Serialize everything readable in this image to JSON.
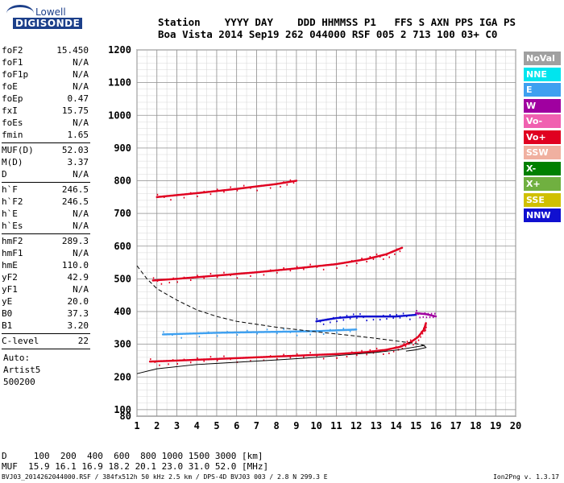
{
  "logo": {
    "line1": "Lowell",
    "line2": "DIGISONDE"
  },
  "header": {
    "line1": "Station    YYYY DAY    DDD HHMMSS P1   FFS S AXN PPS IGA PS",
    "line2": "Boa Vista 2014 Sep19 262 044000 RSF 005 2 713 100 03+ C0"
  },
  "params_group1": [
    {
      "key": "foF2",
      "value": "15.450"
    },
    {
      "key": "foF1",
      "value": "N/A"
    },
    {
      "key": "foF1p",
      "value": "N/A"
    },
    {
      "key": "foE",
      "value": "N/A"
    },
    {
      "key": "foEp",
      "value": "0.47"
    },
    {
      "key": "fxI",
      "value": "15.75"
    },
    {
      "key": "foEs",
      "value": "N/A"
    },
    {
      "key": "fmin",
      "value": "1.65"
    }
  ],
  "params_group2": [
    {
      "key": "MUF(D)",
      "value": "52.03"
    },
    {
      "key": "M(D)",
      "value": "3.37"
    },
    {
      "key": "D",
      "value": "N/A"
    }
  ],
  "params_group3": [
    {
      "key": "h`F",
      "value": "246.5"
    },
    {
      "key": "h`F2",
      "value": "246.5"
    },
    {
      "key": "h`E",
      "value": "N/A"
    },
    {
      "key": "h`Es",
      "value": "N/A"
    }
  ],
  "params_group4": [
    {
      "key": "hmF2",
      "value": "289.3"
    },
    {
      "key": "hmF1",
      "value": "N/A"
    },
    {
      "key": "hmE",
      "value": "110.0"
    },
    {
      "key": "yF2",
      "value": "42.9"
    },
    {
      "key": "yF1",
      "value": "N/A"
    },
    {
      "key": "yE",
      "value": "20.0"
    },
    {
      "key": "B0",
      "value": "37.3"
    },
    {
      "key": "B1",
      "value": "3.20"
    }
  ],
  "params_group5": [
    {
      "key": "C-level",
      "value": "22"
    }
  ],
  "auto": {
    "line1": "Auto:",
    "line2": "Artist5",
    "line3": "500200"
  },
  "legend": [
    {
      "label": "NoVal",
      "color": "#a0a0a0"
    },
    {
      "label": "NNE",
      "color": "#00e5ee"
    },
    {
      "label": "E",
      "color": "#3ea0f0"
    },
    {
      "label": "W",
      "color": "#a000a0"
    },
    {
      "label": "Vo-",
      "color": "#f060b0"
    },
    {
      "label": "Vo+",
      "color": "#e00020"
    },
    {
      "label": "SSW",
      "color": "#f0b0a0"
    },
    {
      "label": "X-",
      "color": "#008000"
    },
    {
      "label": "X+",
      "color": "#70b040"
    },
    {
      "label": "SSE",
      "color": "#d0c000"
    },
    {
      "label": "NNW",
      "color": "#1010d0"
    }
  ],
  "bottom": {
    "d_line": "D     100  200  400  600  800 1000 1500 3000 [km]",
    "muf_line": "MUF  15.9 16.1 16.9 18.2 20.1 23.0 31.0 52.0 [MHz]"
  },
  "footer": "BVJ03_2014262044000.RSF / 384fx512h 50 kHz 2.5 km / DPS-4D BVJ03 003 / 2.8 N 299.3 E",
  "version": "Ion2Png v. 1.3.17",
  "chart_data": {
    "type": "scatter",
    "xlim": [
      1,
      20
    ],
    "ylim": [
      80,
      1200
    ],
    "x_ticks": [
      1,
      2,
      3,
      4,
      5,
      6,
      7,
      8,
      9,
      10,
      11,
      12,
      13,
      14,
      15,
      16,
      17,
      18,
      19,
      20
    ],
    "y_ticks": [
      80,
      100,
      200,
      300,
      400,
      500,
      600,
      700,
      800,
      900,
      1000,
      1100,
      1200
    ],
    "grid": true,
    "traces": [
      {
        "mode": "O",
        "color": "#e00020",
        "points": [
          [
            1.65,
            247
          ],
          [
            3,
            250
          ],
          [
            5,
            255
          ],
          [
            7,
            260
          ],
          [
            9,
            265
          ],
          [
            11,
            270
          ],
          [
            12.5,
            276
          ],
          [
            13.5,
            283
          ],
          [
            14.2,
            292
          ],
          [
            14.7,
            305
          ],
          [
            15.1,
            322
          ],
          [
            15.4,
            345
          ],
          [
            15.5,
            365
          ]
        ]
      },
      {
        "mode": "2hop",
        "color": "#e00020",
        "points": [
          [
            1.8,
            495
          ],
          [
            3,
            500
          ],
          [
            5,
            510
          ],
          [
            7,
            520
          ],
          [
            9,
            532
          ],
          [
            11,
            545
          ],
          [
            12.5,
            560
          ],
          [
            13.5,
            575
          ],
          [
            14.3,
            595
          ]
        ]
      },
      {
        "mode": "3hop",
        "color": "#e00020",
        "points": [
          [
            2,
            750
          ],
          [
            4,
            762
          ],
          [
            6,
            775
          ],
          [
            8,
            790
          ],
          [
            9,
            800
          ]
        ]
      },
      {
        "mode": "E_echoes",
        "color": "#3ea0f0",
        "points": [
          [
            2.3,
            330
          ],
          [
            5,
            335
          ],
          [
            8,
            338
          ],
          [
            10,
            340
          ],
          [
            12,
            345
          ]
        ]
      },
      {
        "mode": "NNW",
        "color": "#1010d0",
        "points": [
          [
            10,
            370
          ],
          [
            11,
            380
          ],
          [
            12,
            385
          ],
          [
            13,
            385
          ],
          [
            14,
            385
          ],
          [
            15,
            390
          ]
        ]
      },
      {
        "mode": "W",
        "color": "#a000a0",
        "points": [
          [
            15,
            395
          ],
          [
            15.5,
            392
          ],
          [
            16,
            385
          ]
        ]
      }
    ],
    "profile_solid": [
      [
        1,
        210
      ],
      [
        2,
        225
      ],
      [
        4,
        238
      ],
      [
        6,
        245
      ],
      [
        8,
        252
      ],
      [
        10,
        260
      ],
      [
        12,
        270
      ],
      [
        13,
        275
      ],
      [
        14,
        282
      ],
      [
        14.8,
        290
      ],
      [
        15.4,
        296
      ],
      [
        15.5,
        290
      ],
      [
        15,
        283
      ],
      [
        14.5,
        279
      ]
    ],
    "profile_dashed": [
      [
        1,
        540
      ],
      [
        1.5,
        500
      ],
      [
        2,
        470
      ],
      [
        3,
        435
      ],
      [
        4,
        405
      ],
      [
        5,
        385
      ],
      [
        6,
        370
      ],
      [
        8,
        352
      ],
      [
        10,
        338
      ],
      [
        12,
        325
      ],
      [
        13,
        318
      ],
      [
        14,
        310
      ],
      [
        15,
        302
      ],
      [
        15.45,
        296
      ]
    ]
  }
}
